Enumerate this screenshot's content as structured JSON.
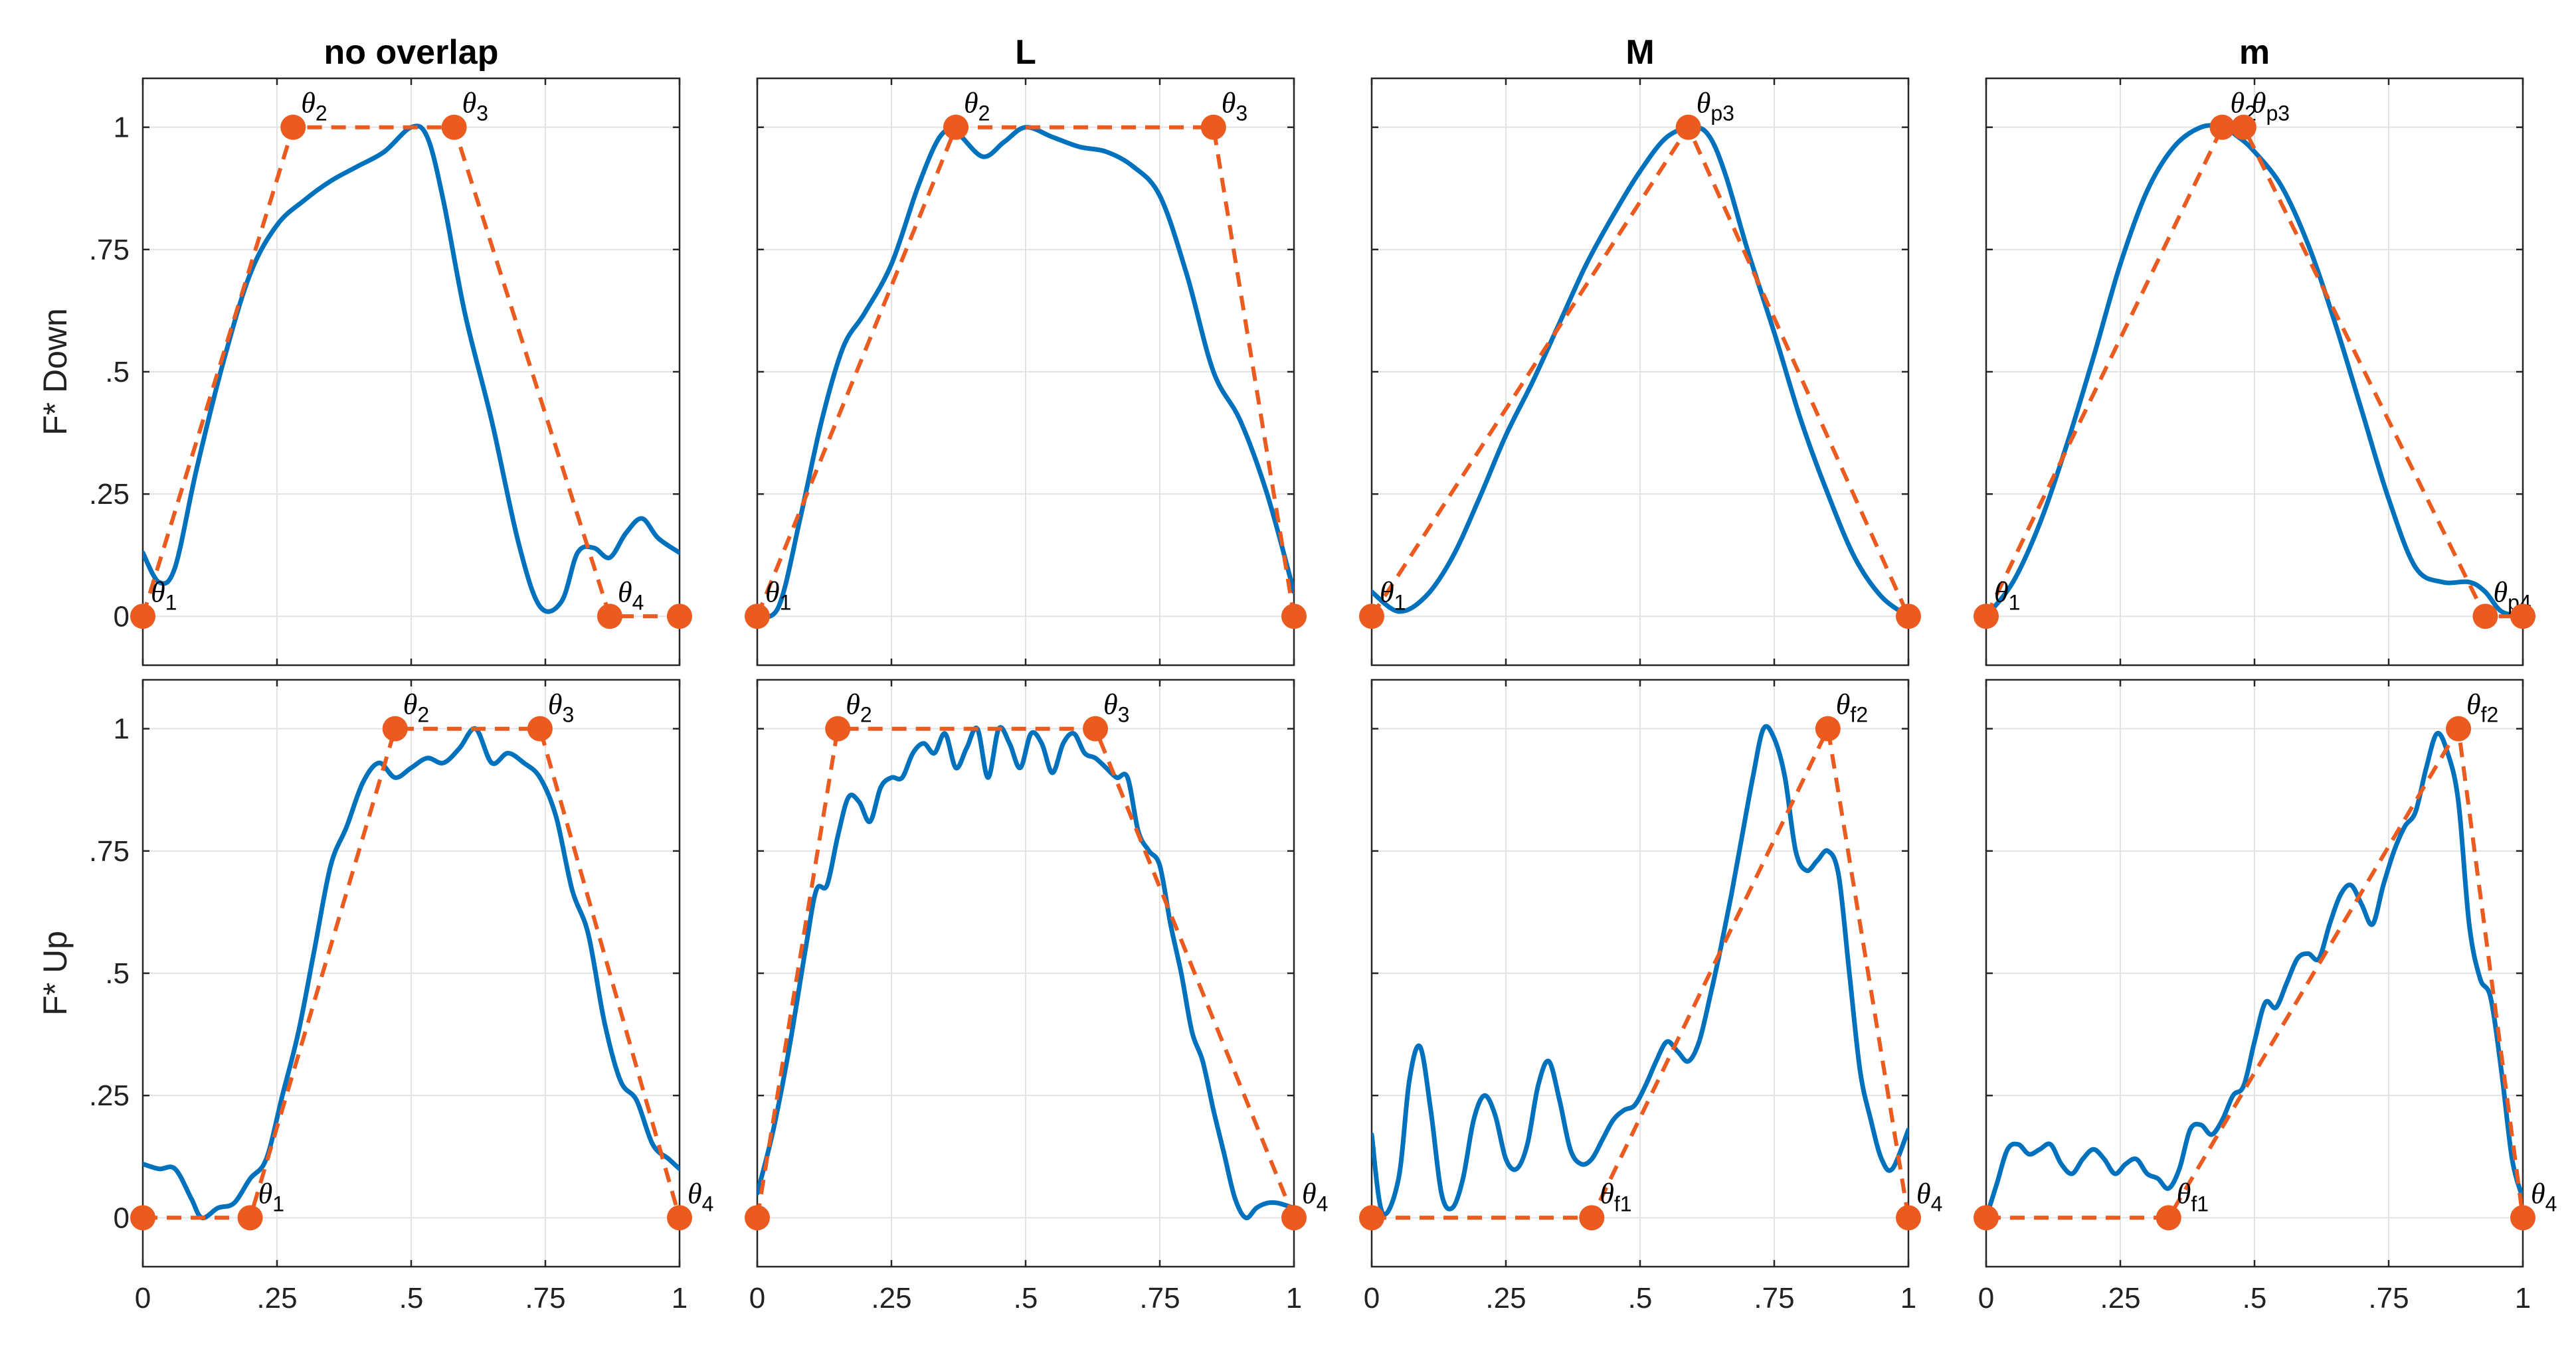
{
  "colors": {
    "curve": "#0072BD",
    "template": "#EB5A1E",
    "grid": "#e3e3e3",
    "axis": "#262626"
  },
  "chart_data": [
    {
      "type": "line",
      "row": 0,
      "col": 0,
      "title": "no overlap",
      "ylabel": "F* Down",
      "xlim": [
        0,
        1
      ],
      "ylim": [
        -0.1,
        1.1
      ],
      "xticks": [
        "0",
        ".25",
        ".5",
        ".75",
        "1"
      ],
      "yticks": [
        "0",
        ".25",
        ".5",
        ".75",
        "1"
      ],
      "curve": {
        "x": [
          0,
          0.03,
          0.06,
          0.1,
          0.15,
          0.2,
          0.25,
          0.3,
          0.35,
          0.4,
          0.45,
          0.5,
          0.53,
          0.56,
          0.6,
          0.65,
          0.7,
          0.74,
          0.78,
          0.81,
          0.84,
          0.87,
          0.9,
          0.93,
          0.96,
          1.0
        ],
        "y": [
          0.13,
          0.07,
          0.1,
          0.3,
          0.52,
          0.7,
          0.8,
          0.85,
          0.89,
          0.92,
          0.95,
          1.0,
          0.98,
          0.85,
          0.62,
          0.4,
          0.15,
          0.02,
          0.03,
          0.13,
          0.14,
          0.12,
          0.17,
          0.2,
          0.16,
          0.13
        ]
      },
      "template": {
        "x": [
          0,
          0.28,
          0.58,
          0.87,
          1.0
        ],
        "y": [
          0,
          1,
          1,
          0,
          0
        ]
      },
      "markers": [
        {
          "x": 0,
          "y": 0,
          "label": "θ",
          "sub": "1"
        },
        {
          "x": 0.28,
          "y": 1,
          "label": "θ",
          "sub": "2"
        },
        {
          "x": 0.58,
          "y": 1,
          "label": "θ",
          "sub": "3"
        },
        {
          "x": 0.87,
          "y": 0,
          "label": "θ",
          "sub": "4"
        },
        {
          "x": 1.0,
          "y": 0,
          "label": "",
          "sub": ""
        }
      ]
    },
    {
      "type": "line",
      "row": 0,
      "col": 1,
      "title": "L",
      "ylabel": "",
      "xlim": [
        0,
        1
      ],
      "ylim": [
        -0.1,
        1.1
      ],
      "xticks": [
        "0",
        ".25",
        ".5",
        ".75",
        "1"
      ],
      "yticks": [
        "0",
        ".25",
        ".5",
        ".75",
        "1"
      ],
      "curve": {
        "x": [
          0,
          0.04,
          0.08,
          0.12,
          0.16,
          0.2,
          0.25,
          0.3,
          0.34,
          0.37,
          0.42,
          0.46,
          0.5,
          0.55,
          0.6,
          0.65,
          0.7,
          0.75,
          0.8,
          0.85,
          0.9,
          0.95,
          1.0
        ],
        "y": [
          0,
          0.02,
          0.2,
          0.4,
          0.55,
          0.62,
          0.72,
          0.88,
          0.98,
          0.99,
          0.94,
          0.97,
          1.0,
          0.98,
          0.96,
          0.95,
          0.92,
          0.86,
          0.7,
          0.5,
          0.4,
          0.25,
          0.05
        ]
      },
      "template": {
        "x": [
          0,
          0.37,
          0.85,
          1.0
        ],
        "y": [
          0,
          1,
          1,
          0
        ]
      },
      "markers": [
        {
          "x": 0,
          "y": 0,
          "label": "θ",
          "sub": "1"
        },
        {
          "x": 0.37,
          "y": 1,
          "label": "θ",
          "sub": "2"
        },
        {
          "x": 0.85,
          "y": 1,
          "label": "θ",
          "sub": "3"
        },
        {
          "x": 1.0,
          "y": 0,
          "label": "",
          "sub": ""
        }
      ]
    },
    {
      "type": "line",
      "row": 0,
      "col": 2,
      "title": "M",
      "ylabel": "",
      "xlim": [
        0,
        1
      ],
      "ylim": [
        -0.1,
        1.1
      ],
      "xticks": [
        "0",
        ".25",
        ".5",
        ".75",
        "1"
      ],
      "yticks": [
        "0",
        ".25",
        ".5",
        ".75",
        "1"
      ],
      "curve": {
        "x": [
          0,
          0.05,
          0.1,
          0.15,
          0.2,
          0.25,
          0.3,
          0.35,
          0.4,
          0.45,
          0.5,
          0.55,
          0.6,
          0.63,
          0.66,
          0.7,
          0.75,
          0.8,
          0.85,
          0.9,
          0.95,
          1.0
        ],
        "y": [
          0.05,
          0.01,
          0.04,
          0.12,
          0.24,
          0.37,
          0.48,
          0.6,
          0.72,
          0.82,
          0.91,
          0.98,
          1.0,
          0.98,
          0.9,
          0.75,
          0.58,
          0.4,
          0.25,
          0.12,
          0.04,
          0.0
        ]
      },
      "template": {
        "x": [
          0,
          0.59,
          1.0
        ],
        "y": [
          0,
          1,
          0
        ]
      },
      "markers": [
        {
          "x": 0,
          "y": 0,
          "label": "θ",
          "sub": "1"
        },
        {
          "x": 0.59,
          "y": 1,
          "label": "θ",
          "sub": "p3"
        },
        {
          "x": 1.0,
          "y": 0,
          "label": "",
          "sub": ""
        }
      ]
    },
    {
      "type": "line",
      "row": 0,
      "col": 3,
      "title": "m",
      "ylabel": "",
      "xlim": [
        0,
        1
      ],
      "ylim": [
        -0.1,
        1.1
      ],
      "xticks": [
        "0",
        ".25",
        ".5",
        ".75",
        "1"
      ],
      "yticks": [
        "0",
        ".25",
        ".5",
        ".75",
        "1"
      ],
      "curve": {
        "x": [
          0,
          0.05,
          0.1,
          0.15,
          0.2,
          0.25,
          0.3,
          0.35,
          0.4,
          0.44,
          0.47,
          0.5,
          0.55,
          0.6,
          0.65,
          0.7,
          0.75,
          0.8,
          0.85,
          0.9,
          0.93,
          0.96,
          1.0
        ],
        "y": [
          0.0,
          0.07,
          0.19,
          0.35,
          0.53,
          0.72,
          0.87,
          0.96,
          1.0,
          1.0,
          0.98,
          0.95,
          0.88,
          0.76,
          0.6,
          0.42,
          0.24,
          0.1,
          0.07,
          0.07,
          0.05,
          0.01,
          0.0
        ]
      },
      "template": {
        "x": [
          0,
          0.44,
          0.48,
          0.93,
          1.0
        ],
        "y": [
          0,
          1,
          1,
          0,
          0
        ]
      },
      "markers": [
        {
          "x": 0,
          "y": 0,
          "label": "θ",
          "sub": "1"
        },
        {
          "x": 0.44,
          "y": 1,
          "label": "θ",
          "sub": "2"
        },
        {
          "x": 0.48,
          "y": 1,
          "label": "θ",
          "sub": "p3"
        },
        {
          "x": 0.93,
          "y": 0,
          "label": "θ",
          "sub": "p4"
        },
        {
          "x": 1.0,
          "y": 0,
          "label": "",
          "sub": ""
        }
      ]
    },
    {
      "type": "line",
      "row": 1,
      "col": 0,
      "title": "",
      "ylabel": "F* Up",
      "xlim": [
        0,
        1
      ],
      "ylim": [
        -0.1,
        1.1
      ],
      "xticks": [
        "0",
        ".25",
        ".5",
        ".75",
        "1"
      ],
      "yticks": [
        "0",
        ".25",
        ".5",
        ".75",
        "1"
      ],
      "curve": {
        "x": [
          0,
          0.03,
          0.06,
          0.09,
          0.11,
          0.14,
          0.17,
          0.2,
          0.23,
          0.26,
          0.29,
          0.32,
          0.35,
          0.38,
          0.41,
          0.44,
          0.47,
          0.5,
          0.53,
          0.56,
          0.59,
          0.62,
          0.65,
          0.68,
          0.71,
          0.74,
          0.77,
          0.8,
          0.83,
          0.86,
          0.89,
          0.92,
          0.95,
          0.98,
          1.0
        ],
        "y": [
          0.11,
          0.1,
          0.1,
          0.04,
          0.0,
          0.02,
          0.03,
          0.08,
          0.12,
          0.25,
          0.38,
          0.55,
          0.72,
          0.8,
          0.89,
          0.93,
          0.9,
          0.92,
          0.94,
          0.93,
          0.96,
          1.0,
          0.93,
          0.95,
          0.93,
          0.9,
          0.82,
          0.67,
          0.58,
          0.4,
          0.28,
          0.24,
          0.15,
          0.12,
          0.1
        ]
      },
      "template": {
        "x": [
          0,
          0.2,
          0.47,
          0.74,
          1.0
        ],
        "y": [
          0,
          0,
          1,
          1,
          0
        ]
      },
      "markers": [
        {
          "x": 0,
          "y": 0,
          "label": "",
          "sub": ""
        },
        {
          "x": 0.2,
          "y": 0,
          "label": "θ",
          "sub": "1"
        },
        {
          "x": 0.47,
          "y": 1,
          "label": "θ",
          "sub": "2"
        },
        {
          "x": 0.74,
          "y": 1,
          "label": "θ",
          "sub": "3"
        },
        {
          "x": 1.0,
          "y": 0,
          "label": "θ",
          "sub": "4"
        }
      ]
    },
    {
      "type": "line",
      "row": 1,
      "col": 1,
      "title": "",
      "ylabel": "",
      "xlim": [
        0,
        1
      ],
      "ylim": [
        -0.1,
        1.1
      ],
      "xticks": [
        "0",
        ".25",
        ".5",
        ".75",
        "1"
      ],
      "yticks": [
        "0",
        ".25",
        ".5",
        ".75",
        "1"
      ],
      "curve": {
        "x": [
          0,
          0.03,
          0.06,
          0.09,
          0.11,
          0.13,
          0.15,
          0.17,
          0.19,
          0.21,
          0.23,
          0.25,
          0.27,
          0.29,
          0.31,
          0.33,
          0.35,
          0.37,
          0.39,
          0.41,
          0.43,
          0.45,
          0.47,
          0.49,
          0.51,
          0.53,
          0.55,
          0.57,
          0.59,
          0.61,
          0.63,
          0.65,
          0.67,
          0.69,
          0.71,
          0.73,
          0.75,
          0.77,
          0.79,
          0.81,
          0.83,
          0.85,
          0.87,
          0.89,
          0.91,
          0.93,
          0.95,
          0.97,
          1.0
        ],
        "y": [
          0.05,
          0.18,
          0.35,
          0.55,
          0.67,
          0.68,
          0.78,
          0.86,
          0.85,
          0.81,
          0.88,
          0.9,
          0.9,
          0.95,
          0.97,
          0.95,
          0.99,
          0.92,
          0.96,
          1.0,
          0.9,
          1.0,
          0.97,
          0.92,
          0.99,
          0.97,
          0.91,
          0.97,
          0.99,
          0.95,
          0.94,
          0.92,
          0.9,
          0.9,
          0.79,
          0.75,
          0.72,
          0.6,
          0.5,
          0.38,
          0.32,
          0.22,
          0.13,
          0.04,
          0.0,
          0.02,
          0.03,
          0.03,
          0.02
        ]
      },
      "template": {
        "x": [
          0,
          0.15,
          0.63,
          1.0
        ],
        "y": [
          0,
          1,
          1,
          0
        ]
      },
      "markers": [
        {
          "x": 0,
          "y": 0,
          "label": "",
          "sub": ""
        },
        {
          "x": 0.15,
          "y": 1,
          "label": "θ",
          "sub": "2"
        },
        {
          "x": 0.63,
          "y": 1,
          "label": "θ",
          "sub": "3"
        },
        {
          "x": 1.0,
          "y": 0,
          "label": "θ",
          "sub": "4"
        }
      ]
    },
    {
      "type": "line",
      "row": 1,
      "col": 2,
      "title": "",
      "ylabel": "",
      "xlim": [
        0,
        1
      ],
      "ylim": [
        -0.1,
        1.1
      ],
      "xticks": [
        "0",
        ".25",
        ".5",
        ".75",
        "1"
      ],
      "yticks": [
        "0",
        ".25",
        ".5",
        ".75",
        "1"
      ],
      "curve": {
        "x": [
          0,
          0.02,
          0.05,
          0.07,
          0.09,
          0.11,
          0.13,
          0.15,
          0.17,
          0.19,
          0.21,
          0.23,
          0.25,
          0.27,
          0.29,
          0.31,
          0.33,
          0.35,
          0.37,
          0.39,
          0.41,
          0.43,
          0.45,
          0.47,
          0.49,
          0.51,
          0.53,
          0.55,
          0.57,
          0.59,
          0.61,
          0.63,
          0.65,
          0.67,
          0.69,
          0.71,
          0.73,
          0.75,
          0.77,
          0.79,
          0.81,
          0.83,
          0.85,
          0.87,
          0.89,
          0.91,
          0.93,
          0.95,
          0.97,
          1.0
        ],
        "y": [
          0.17,
          0.01,
          0.08,
          0.28,
          0.35,
          0.22,
          0.05,
          0.02,
          0.08,
          0.2,
          0.25,
          0.21,
          0.12,
          0.1,
          0.15,
          0.27,
          0.32,
          0.24,
          0.14,
          0.11,
          0.12,
          0.16,
          0.2,
          0.22,
          0.23,
          0.27,
          0.32,
          0.36,
          0.34,
          0.32,
          0.36,
          0.45,
          0.55,
          0.66,
          0.78,
          0.9,
          1.0,
          0.98,
          0.9,
          0.75,
          0.71,
          0.73,
          0.75,
          0.7,
          0.5,
          0.3,
          0.2,
          0.12,
          0.1,
          0.18
        ]
      },
      "template": {
        "x": [
          0,
          0.41,
          0.85,
          1.0
        ],
        "y": [
          0,
          0,
          1,
          0
        ]
      },
      "markers": [
        {
          "x": 0,
          "y": 0,
          "label": "",
          "sub": ""
        },
        {
          "x": 0.41,
          "y": 0,
          "label": "θ",
          "sub": "f1"
        },
        {
          "x": 0.85,
          "y": 1,
          "label": "θ",
          "sub": "f2"
        },
        {
          "x": 1.0,
          "y": 0,
          "label": "θ",
          "sub": "4"
        }
      ]
    },
    {
      "type": "line",
      "row": 1,
      "col": 3,
      "title": "",
      "ylabel": "",
      "xlim": [
        0,
        1
      ],
      "ylim": [
        -0.1,
        1.1
      ],
      "xticks": [
        "0",
        ".25",
        ".5",
        ".75",
        "1"
      ],
      "yticks": [
        "0",
        ".25",
        ".5",
        ".75",
        "1"
      ],
      "curve": {
        "x": [
          0,
          0.02,
          0.04,
          0.06,
          0.08,
          0.1,
          0.12,
          0.14,
          0.16,
          0.18,
          0.2,
          0.22,
          0.24,
          0.26,
          0.28,
          0.3,
          0.32,
          0.34,
          0.36,
          0.38,
          0.4,
          0.42,
          0.44,
          0.46,
          0.48,
          0.5,
          0.52,
          0.54,
          0.56,
          0.58,
          0.6,
          0.62,
          0.64,
          0.66,
          0.68,
          0.7,
          0.72,
          0.74,
          0.76,
          0.78,
          0.8,
          0.82,
          0.84,
          0.86,
          0.88,
          0.9,
          0.92,
          0.94,
          0.96,
          0.98,
          1.0
        ],
        "y": [
          0.0,
          0.07,
          0.14,
          0.15,
          0.13,
          0.14,
          0.15,
          0.11,
          0.09,
          0.12,
          0.14,
          0.12,
          0.09,
          0.11,
          0.12,
          0.09,
          0.08,
          0.06,
          0.1,
          0.18,
          0.19,
          0.17,
          0.2,
          0.25,
          0.27,
          0.36,
          0.44,
          0.43,
          0.48,
          0.53,
          0.54,
          0.53,
          0.6,
          0.66,
          0.68,
          0.64,
          0.6,
          0.68,
          0.75,
          0.8,
          0.83,
          0.92,
          0.99,
          0.95,
          0.85,
          0.6,
          0.49,
          0.45,
          0.3,
          0.12,
          0.04
        ]
      },
      "template": {
        "x": [
          0,
          0.34,
          0.88,
          1.0
        ],
        "y": [
          0,
          0,
          1,
          0
        ]
      },
      "markers": [
        {
          "x": 0,
          "y": 0,
          "label": "",
          "sub": ""
        },
        {
          "x": 0.34,
          "y": 0,
          "label": "θ",
          "sub": "f1"
        },
        {
          "x": 0.88,
          "y": 1,
          "label": "θ",
          "sub": "f2"
        },
        {
          "x": 1.0,
          "y": 0,
          "label": "θ",
          "sub": "4"
        }
      ]
    }
  ]
}
